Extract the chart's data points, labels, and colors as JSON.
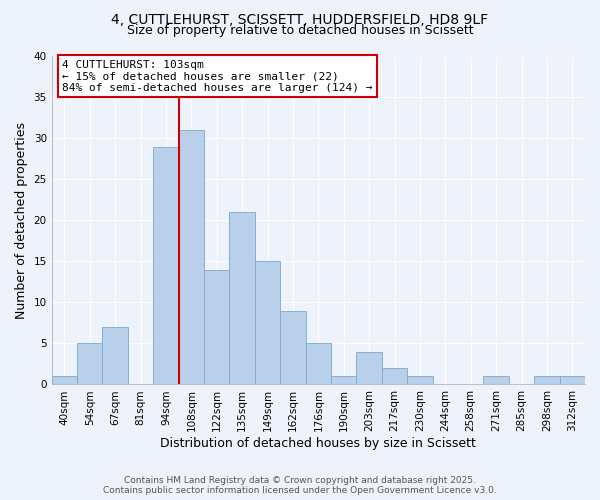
{
  "title_line1": "4, CUTTLEHURST, SCISSETT, HUDDERSFIELD, HD8 9LF",
  "title_line2": "Size of property relative to detached houses in Scissett",
  "xlabel": "Distribution of detached houses by size in Scissett",
  "ylabel": "Number of detached properties",
  "bar_labels": [
    "40sqm",
    "54sqm",
    "67sqm",
    "81sqm",
    "94sqm",
    "108sqm",
    "122sqm",
    "135sqm",
    "149sqm",
    "162sqm",
    "176sqm",
    "190sqm",
    "203sqm",
    "217sqm",
    "230sqm",
    "244sqm",
    "258sqm",
    "271sqm",
    "285sqm",
    "298sqm",
    "312sqm"
  ],
  "bar_values": [
    1,
    5,
    7,
    0,
    29,
    31,
    14,
    21,
    15,
    9,
    5,
    1,
    4,
    2,
    1,
    0,
    0,
    1,
    0,
    1,
    1
  ],
  "bar_color": "#b8d0ea",
  "bar_edge_color": "#7aaace",
  "vline_x_index": 4,
  "vline_color": "#cc0000",
  "annotation_title": "4 CUTTLEHURST: 103sqm",
  "annotation_line2": "← 15% of detached houses are smaller (22)",
  "annotation_line3": "84% of semi-detached houses are larger (124) →",
  "annotation_box_color": "#ffffff",
  "annotation_box_edge": "#cc0000",
  "ylim": [
    0,
    40
  ],
  "yticks": [
    0,
    5,
    10,
    15,
    20,
    25,
    30,
    35,
    40
  ],
  "footer_line1": "Contains HM Land Registry data © Crown copyright and database right 2025.",
  "footer_line2": "Contains public sector information licensed under the Open Government Licence v3.0.",
  "bg_color": "#eef2fa",
  "grid_color": "#ffffff",
  "title_fontsize": 10,
  "subtitle_fontsize": 9,
  "axis_label_fontsize": 9,
  "tick_fontsize": 7.5,
  "footer_fontsize": 6.5,
  "annotation_fontsize": 8
}
